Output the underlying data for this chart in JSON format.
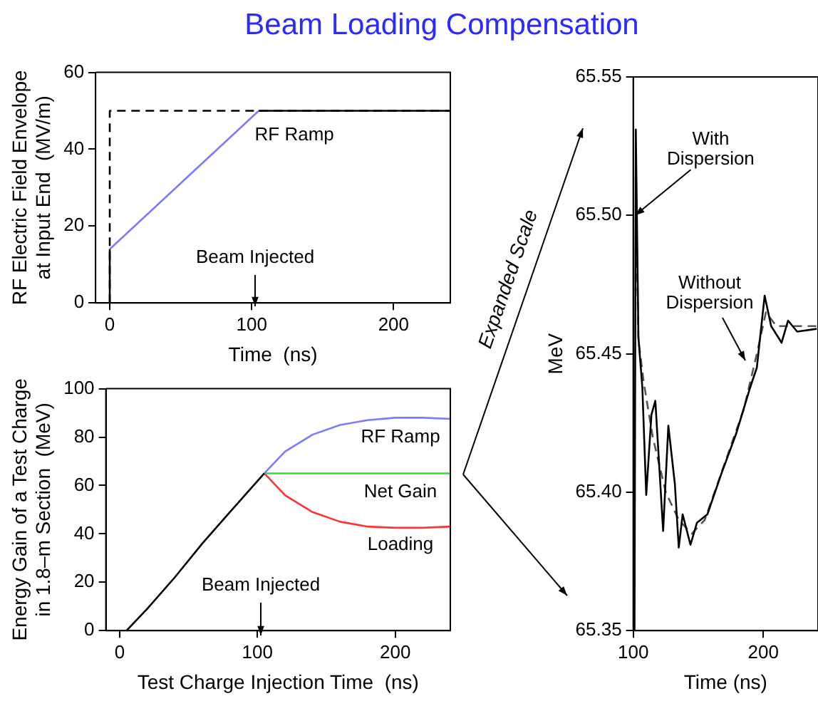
{
  "chart_data": [
    {
      "type": "line",
      "title": "Beam Loading Compensation",
      "xlabel": "Time  (ns)",
      "ylabel": "RF Electric Field Envelope\nat Input End  (MV/m)",
      "xlim": [
        -10,
        240
      ],
      "xticks": [
        0,
        100,
        200
      ],
      "ylim": [
        0,
        60
      ],
      "yticks": [
        0,
        20,
        40,
        60
      ],
      "series": [
        {
          "color": "#000000",
          "line_style": "dashed",
          "x": [
            0,
            0,
            240
          ],
          "values": [
            0,
            50,
            50
          ]
        },
        {
          "color": "#000000",
          "x": [
            0,
            0,
            50,
            105,
            240
          ],
          "values": [
            0,
            14,
            null,
            50,
            50
          ]
        },
        {
          "name": "RF Ramp",
          "color": "#7b7bff",
          "x": [
            0,
            105
          ],
          "values": [
            14,
            50
          ]
        }
      ],
      "annotations": [
        "Beam Injected"
      ]
    },
    {
      "type": "line",
      "xlabel": "Test Charge Injection Time  (ns)",
      "ylabel": "Energy Gain of a Test Charge\nin 1.8–m Section  (MeV)",
      "xlim": [
        -10,
        240
      ],
      "xticks": [
        0,
        100,
        200
      ],
      "ylim": [
        0,
        100
      ],
      "yticks": [
        0,
        20,
        40,
        60,
        80,
        100
      ],
      "series": [
        {
          "color": "#000000",
          "x": [
            5,
            20,
            40,
            60,
            80,
            105
          ],
          "values": [
            0,
            9,
            22,
            36,
            49,
            65
          ]
        },
        {
          "name": "RF Ramp",
          "color": "#7b7bff",
          "x": [
            105,
            120,
            140,
            160,
            180,
            200,
            220,
            240
          ],
          "values": [
            65,
            74,
            81,
            85,
            87,
            88,
            88,
            87.5
          ]
        },
        {
          "name": "Net Gain",
          "color": "#33dd33",
          "x": [
            105,
            240
          ],
          "values": [
            65,
            65
          ]
        },
        {
          "name": "Loading",
          "color": "#ff3333",
          "x": [
            105,
            120,
            140,
            160,
            180,
            200,
            220,
            240
          ],
          "values": [
            65,
            56,
            49,
            45,
            43,
            42.5,
            42.5,
            43
          ]
        }
      ],
      "annotations": [
        "Beam Injected"
      ]
    },
    {
      "type": "line",
      "xlabel": "Time (ns)",
      "ylabel": "MeV",
      "xlim": [
        100,
        242
      ],
      "xticks": [
        100,
        200
      ],
      "ylim": [
        65.35,
        65.55
      ],
      "yticks": [
        {
          "value": 65.35,
          "label": "65.35"
        },
        {
          "value": 65.4,
          "label": "65.40"
        },
        {
          "value": 65.45,
          "label": "65.45"
        },
        {
          "value": 65.5,
          "label": "65.50"
        },
        {
          "value": 65.55,
          "label": "65.55"
        }
      ],
      "series": [
        {
          "color": "#000000",
          "x": [
            101,
            102,
            104,
            107,
            110,
            114,
            117,
            123,
            127,
            132,
            135,
            138,
            144,
            149,
            157,
            168,
            179,
            190,
            195,
            201,
            206,
            214,
            219,
            226,
            241
          ],
          "values": [
            65.35,
            65.531,
            65.456,
            65.438,
            65.399,
            65.428,
            65.433,
            65.386,
            65.424,
            65.403,
            65.38,
            65.392,
            65.381,
            65.389,
            65.392,
            65.407,
            65.421,
            65.438,
            65.445,
            65.471,
            65.46,
            65.454,
            65.462,
            65.458,
            65.459
          ]
        },
        {
          "color": "#555555",
          "line_style": "dashed",
          "x": [
            102,
            104,
            108,
            115,
            125,
            135,
            145,
            155,
            170,
            185,
            195,
            202,
            210,
            220,
            241
          ],
          "values": [
            65.51,
            65.455,
            65.44,
            65.42,
            65.4,
            65.39,
            65.385,
            65.39,
            65.41,
            65.43,
            65.45,
            65.465,
            65.46,
            65.46,
            65.46
          ]
        }
      ],
      "annotations": [
        "Expanded Scale",
        {
          "text": "With Dispersion",
          "x": 101.5,
          "y": 65.5
        },
        "Without Dispersion"
      ]
    }
  ]
}
